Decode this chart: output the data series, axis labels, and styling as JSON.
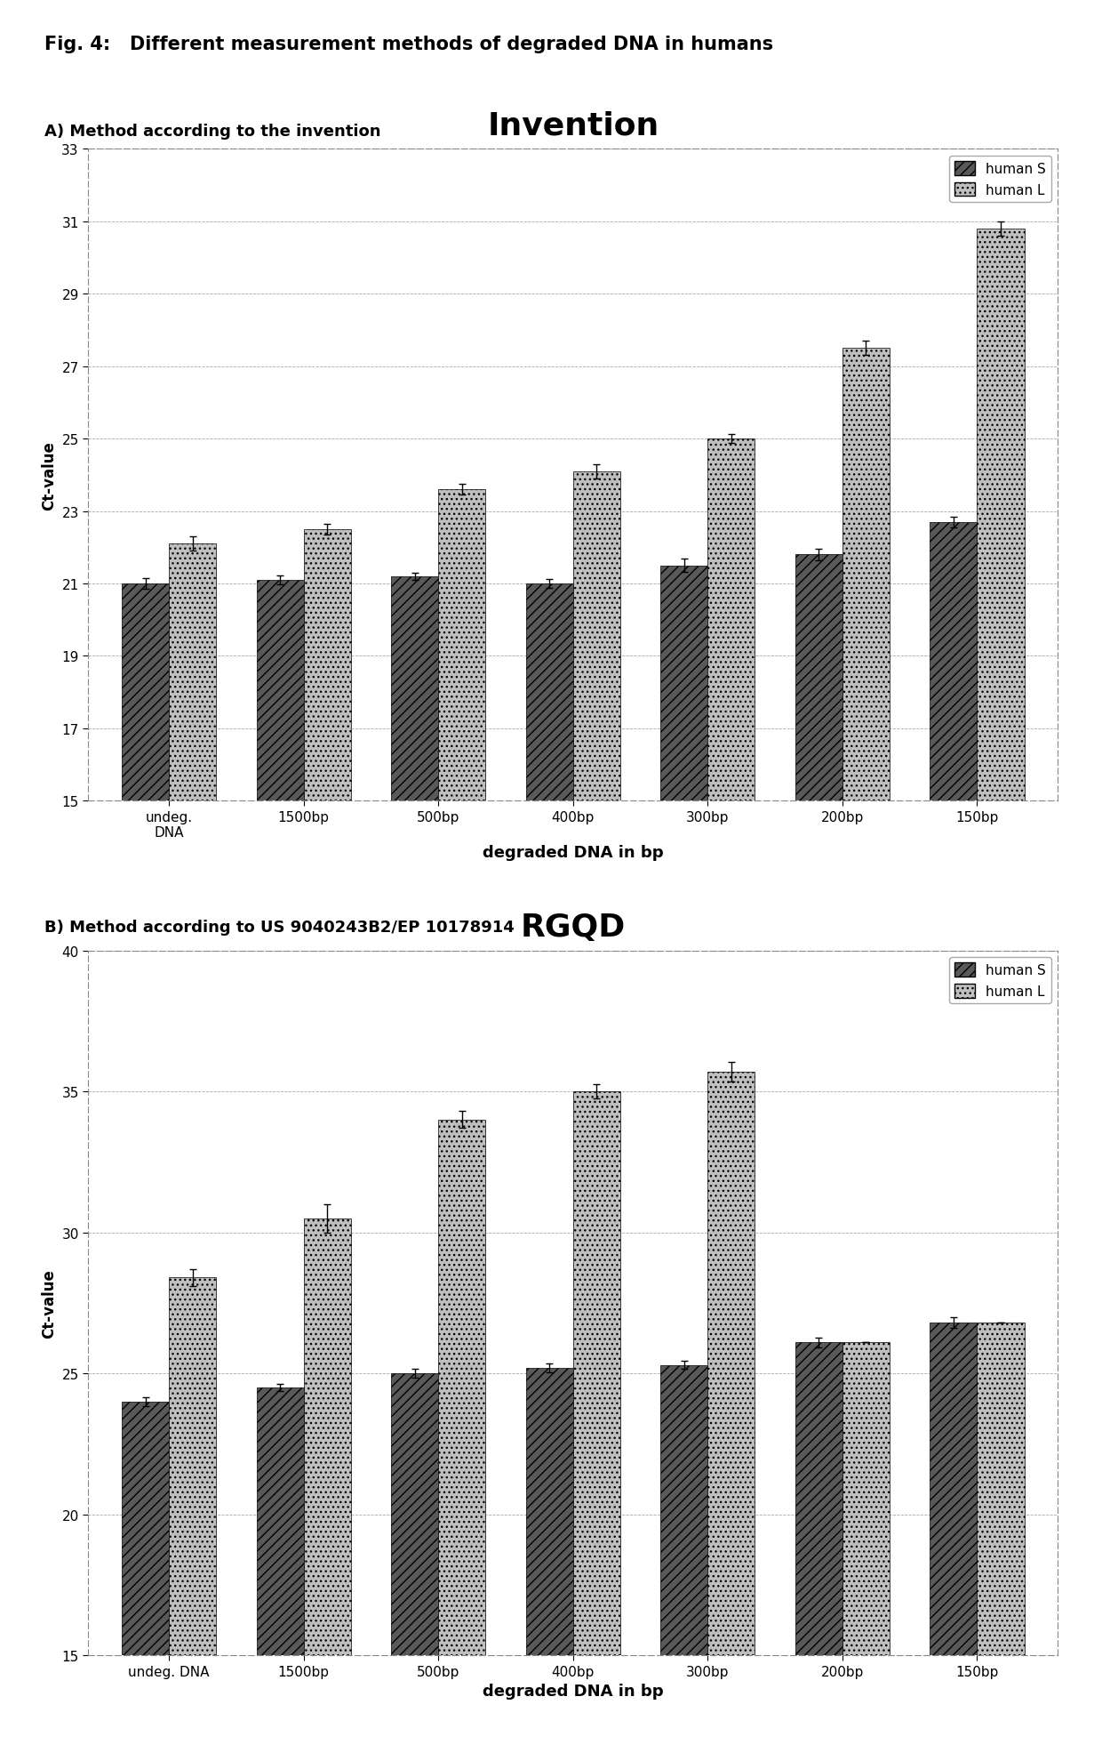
{
  "fig_title": "Fig. 4:   Different measurement methods of degraded DNA in humans",
  "panel_A_label": "A) Method according to the invention",
  "panel_B_label": "B) Method according to US 9040243B2/EP 10178914",
  "categories_A": [
    "undeg.\nDNA",
    "1500bp",
    "500bp",
    "400bp",
    "300bp",
    "200bp",
    "150bp"
  ],
  "categories_B": [
    "undeg. DNA",
    "1500bp",
    "500bp",
    "400bp",
    "300bp",
    "200bp",
    "150bp"
  ],
  "chart_A_title": "Invention",
  "chart_B_title": "RGQD",
  "chart_A_xlabel": "degraded DNA in bp",
  "chart_B_xlabel": "degraded DNA in bp",
  "chart_A_ylabel": "Ct-value",
  "chart_B_ylabel": "Ct-value",
  "chart_A_ylim": [
    15,
    33
  ],
  "chart_B_ylim": [
    15,
    40
  ],
  "chart_A_yticks": [
    15,
    17,
    19,
    21,
    23,
    25,
    27,
    29,
    31,
    33
  ],
  "chart_B_yticks": [
    15,
    20,
    25,
    30,
    35,
    40
  ],
  "humanS_A": [
    21.0,
    21.1,
    21.2,
    21.0,
    21.5,
    21.8,
    22.7
  ],
  "humanL_A": [
    22.1,
    22.5,
    23.6,
    24.1,
    25.0,
    27.5,
    30.8
  ],
  "humanS_A_err": [
    0.15,
    0.12,
    0.1,
    0.12,
    0.18,
    0.15,
    0.15
  ],
  "humanL_A_err": [
    0.2,
    0.15,
    0.15,
    0.2,
    0.12,
    0.2,
    0.2
  ],
  "humanS_B": [
    24.0,
    24.5,
    25.0,
    25.2,
    25.3,
    26.1,
    26.8
  ],
  "humanL_B": [
    28.4,
    30.5,
    34.0,
    35.0,
    35.7,
    26.1,
    26.8
  ],
  "humanS_B_err": [
    0.15,
    0.12,
    0.15,
    0.15,
    0.15,
    0.18,
    0.2
  ],
  "humanL_B_err": [
    0.3,
    0.5,
    0.3,
    0.25,
    0.35,
    0.0,
    0.0
  ],
  "color_S": "#595959",
  "color_L": "#bfbfbf",
  "hatch_S": "///",
  "hatch_L": "...",
  "bar_width": 0.35,
  "legend_S": "human S",
  "legend_L": "human L",
  "background_color": "#ffffff",
  "grid_color": "#aaaaaa",
  "border_color": "#888888"
}
